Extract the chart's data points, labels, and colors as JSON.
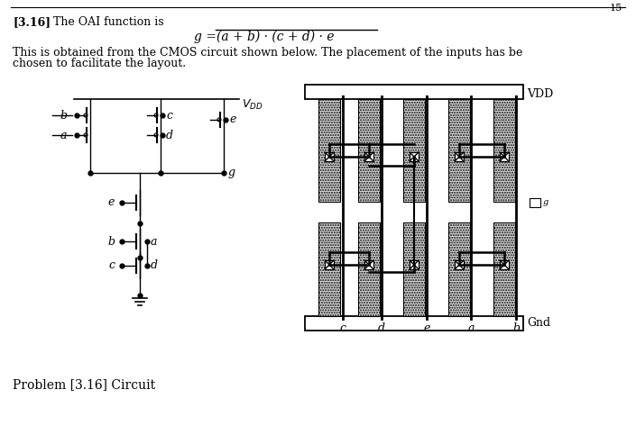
{
  "page_num": "15",
  "title_bold": "[3.16]",
  "title_text": " The OAI function is",
  "body_text1": "This is obtained from the CMOS circuit shown below. The placement of the inputs has be",
  "body_text2": "chosen to facilitate the layout.",
  "caption": "Problem [3.16] Circuit",
  "bg_color": "#ffffff",
  "text_color": "#000000",
  "dot_fill": "#d8d8d8",
  "vdd_label": "VDD",
  "gnd_label": "Gnd",
  "poly_labels": [
    "c",
    "d",
    "e",
    "a",
    "b"
  ]
}
